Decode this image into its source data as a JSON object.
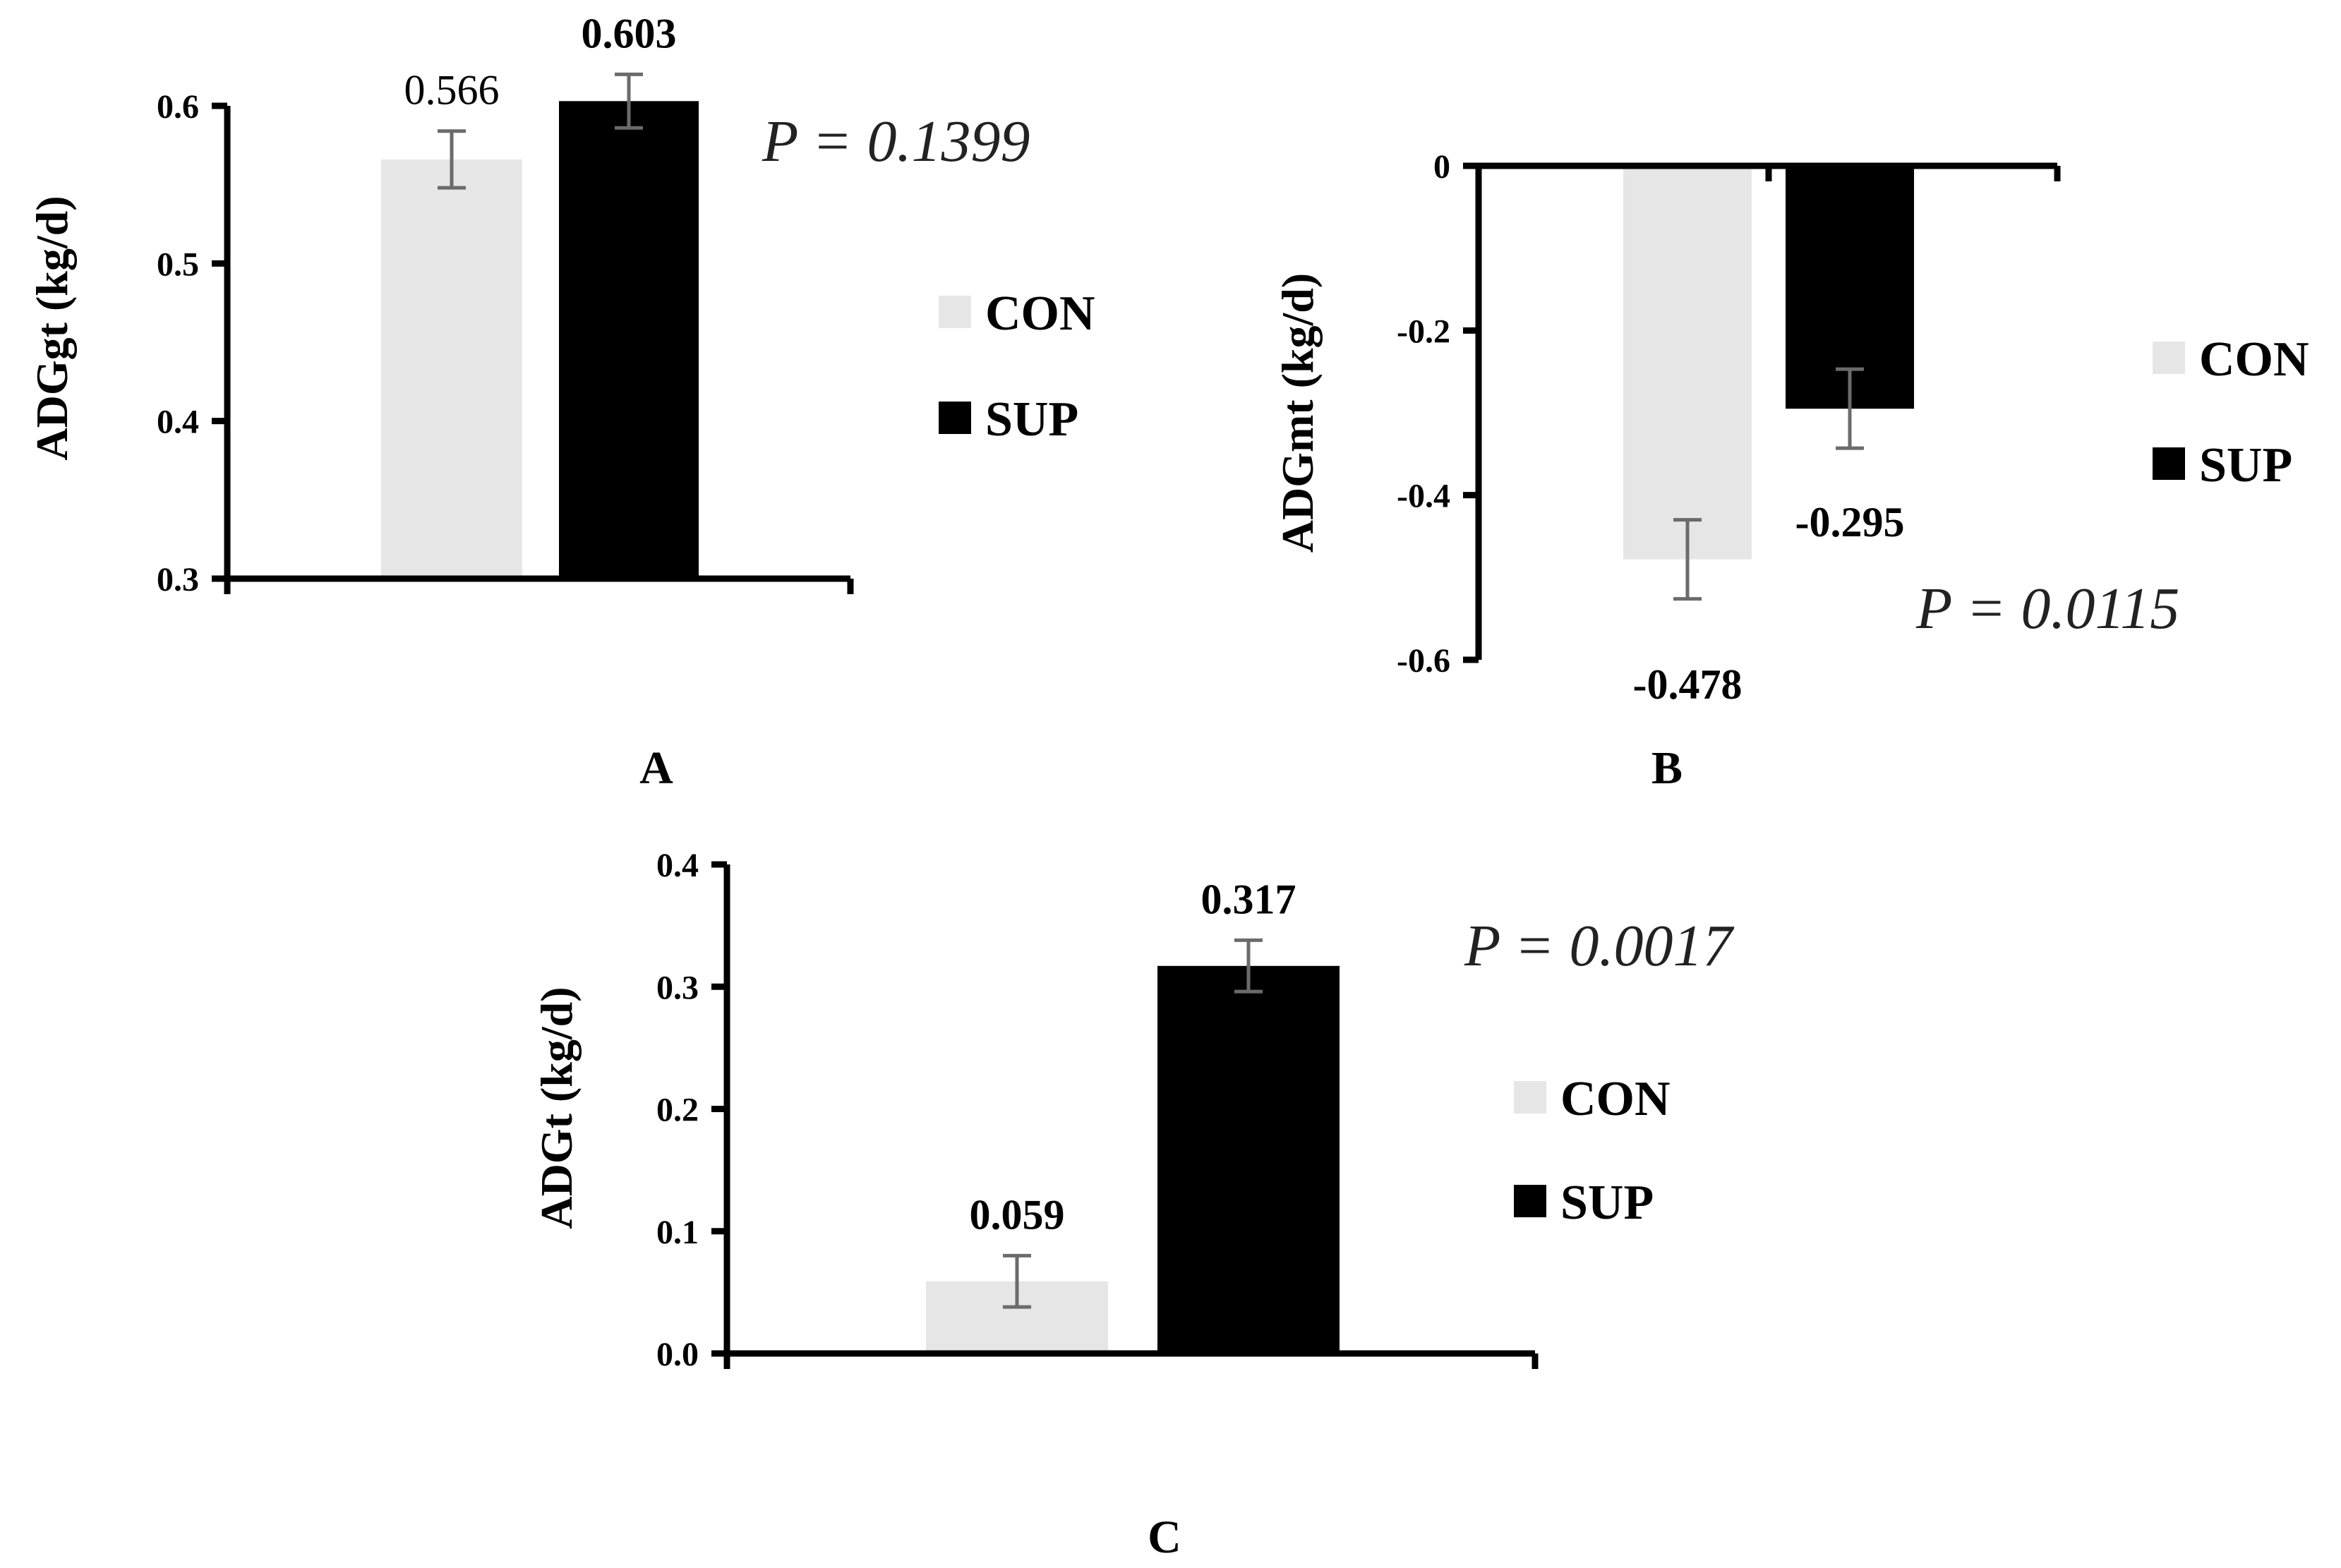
{
  "chart_data": [
    {
      "panel": "A",
      "type": "bar",
      "categories": [
        "CON",
        "SUP"
      ],
      "values": [
        0.566,
        0.603
      ],
      "value_labels": [
        "0.566",
        "0.603"
      ],
      "label_bold": [
        false,
        true
      ],
      "errors": [
        0.018,
        0.017
      ],
      "ylabel": "ADGgt (kg/d)",
      "ylim": [
        0.3,
        0.6
      ],
      "yticks": [
        "0.3",
        "0.4",
        "0.5",
        "0.6"
      ],
      "p_value": "P = 0.1399",
      "legend": [
        "CON",
        "SUP"
      ],
      "colors": [
        "#e6e6e6",
        "#000000"
      ]
    },
    {
      "panel": "B",
      "type": "bar",
      "categories": [
        "CON",
        "SUP"
      ],
      "values": [
        -0.478,
        -0.295
      ],
      "value_labels": [
        "-0.478",
        "-0.295"
      ],
      "label_bold": [
        true,
        true
      ],
      "errors": [
        0.048,
        0.048
      ],
      "ylabel": "ADGmt (kg/d)",
      "ylim": [
        -0.6,
        0
      ],
      "yticks": [
        "0",
        "-0.2",
        "-0.4",
        "-0.6"
      ],
      "p_value": "P = 0.0115",
      "legend": [
        "CON",
        "SUP"
      ],
      "colors": [
        "#e6e6e6",
        "#000000"
      ]
    },
    {
      "panel": "C",
      "type": "bar",
      "categories": [
        "CON",
        "SUP"
      ],
      "values": [
        0.059,
        0.317
      ],
      "value_labels": [
        "0.059",
        "0.317"
      ],
      "label_bold": [
        true,
        true
      ],
      "errors": [
        0.021,
        0.021
      ],
      "ylabel": "ADGt (kg/d)",
      "ylim": [
        0.0,
        0.4
      ],
      "yticks": [
        "0.0",
        "0.1",
        "0.2",
        "0.3",
        "0.4"
      ],
      "p_value": "P = 0.0017",
      "legend": [
        "CON",
        "SUP"
      ],
      "colors": [
        "#e6e6e6",
        "#000000"
      ]
    }
  ]
}
